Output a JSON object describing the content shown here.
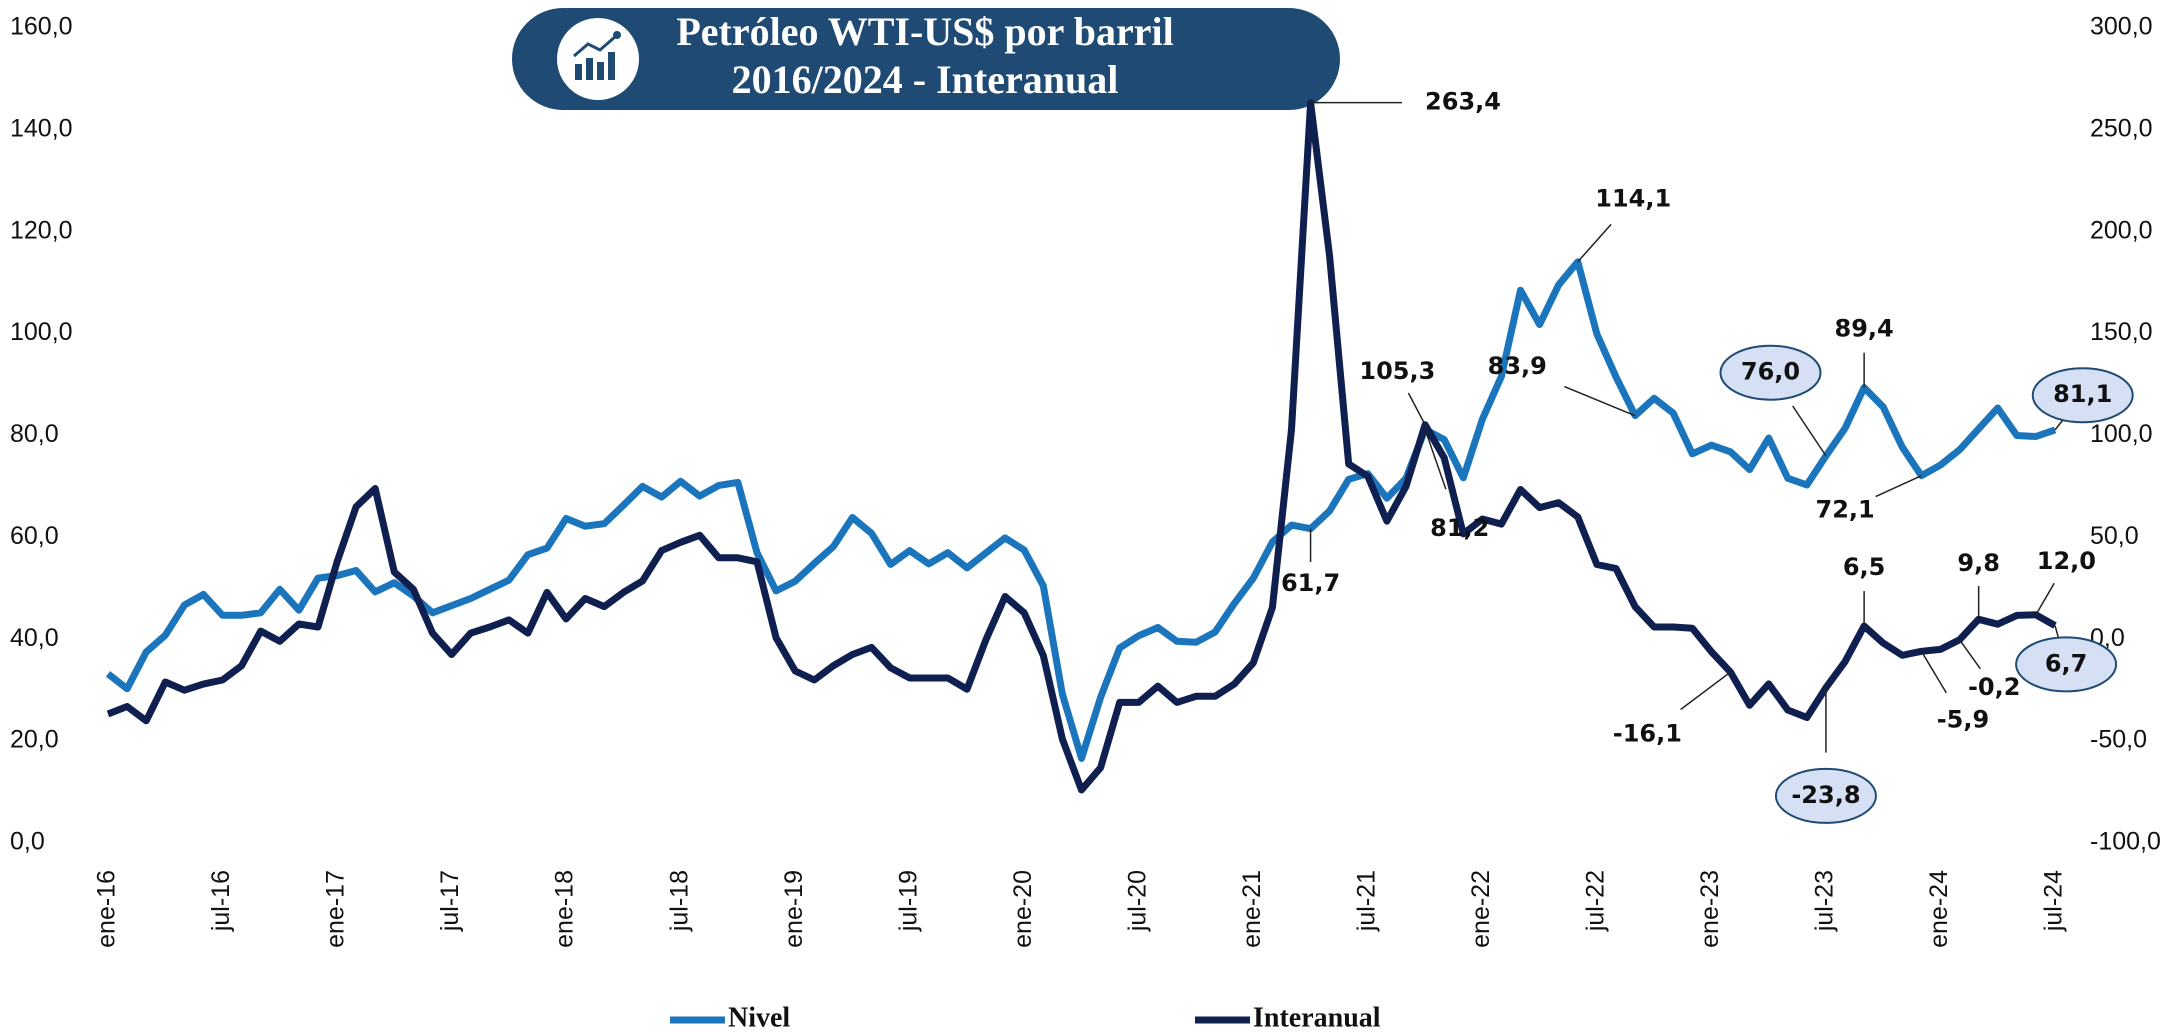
{
  "chart_data": {
    "type": "line",
    "title": "Petróleo WTI-US$ por barril",
    "subtitle": "2016/2024 - Interanual",
    "legend": "bottom",
    "categories": [
      "ene-16",
      null,
      null,
      null,
      null,
      null,
      "jul-16",
      null,
      null,
      null,
      null,
      null,
      "ene-17",
      null,
      null,
      null,
      null,
      null,
      "jul-17",
      null,
      null,
      null,
      null,
      null,
      "ene-18",
      null,
      null,
      null,
      null,
      null,
      "jul-18",
      null,
      null,
      null,
      null,
      null,
      "ene-19",
      null,
      null,
      null,
      null,
      null,
      "jul-19",
      null,
      null,
      null,
      null,
      null,
      "ene-20",
      null,
      null,
      null,
      null,
      null,
      "jul-20",
      null,
      null,
      null,
      null,
      null,
      "ene-21",
      null,
      null,
      null,
      null,
      null,
      "jul-21",
      null,
      null,
      null,
      null,
      null,
      "ene-22",
      null,
      null,
      null,
      null,
      null,
      "jul-22",
      null,
      null,
      null,
      null,
      null,
      "ene-23",
      null,
      null,
      null,
      null,
      null,
      "jul-23",
      null,
      null,
      null,
      null,
      null,
      "ene-24",
      null,
      null,
      null,
      null,
      null,
      "jul-24"
    ],
    "ylim": [
      0,
      160
    ],
    "yticks": [
      {
        "value": 0,
        "label": "0,0"
      },
      {
        "value": 20,
        "label": "20,0"
      },
      {
        "value": 40,
        "label": "40,0"
      },
      {
        "value": 60,
        "label": "60,0"
      },
      {
        "value": 80,
        "label": "80,0"
      },
      {
        "value": 100,
        "label": "100,0"
      },
      {
        "value": 120,
        "label": "120,0"
      },
      {
        "value": 140,
        "label": "140,0"
      },
      {
        "value": 160,
        "label": "160,0"
      }
    ],
    "y2lim": [
      -100,
      300
    ],
    "y2ticks": [
      {
        "value": -100,
        "label": "-100,0"
      },
      {
        "value": -50,
        "label": "-50,0"
      },
      {
        "value": 0,
        "label": "0,0"
      },
      {
        "value": 50,
        "label": "50,0"
      },
      {
        "value": 100,
        "label": "100,0"
      },
      {
        "value": 150,
        "label": "150,0"
      },
      {
        "value": 200,
        "label": "200,0"
      },
      {
        "value": 250,
        "label": "250,0"
      },
      {
        "value": 300,
        "label": "300,0"
      }
    ],
    "series": [
      {
        "name": "Nivel",
        "color": "#1b75bc",
        "values": [
          33.2,
          30.3,
          37.5,
          40.8,
          46.7,
          48.8,
          44.7,
          44.7,
          45.2,
          49.8,
          45.7,
          52.0,
          52.5,
          53.5,
          49.3,
          51.1,
          48.5,
          45.2,
          46.6,
          48.0,
          49.8,
          51.6,
          56.6,
          57.9,
          63.7,
          62.2,
          62.7,
          66.3,
          70.0,
          67.9,
          71.0,
          68.1,
          70.2,
          70.8,
          57.0,
          49.5,
          51.4,
          54.9,
          58.2,
          63.9,
          60.8,
          54.7,
          57.4,
          54.8,
          57.0,
          54.0,
          57.0,
          59.9,
          57.5,
          50.5,
          29.2,
          16.6,
          28.6,
          38.3,
          40.7,
          42.3,
          39.6,
          39.4,
          41.4,
          47.0,
          52.0,
          59.1,
          62.4,
          61.7,
          65.2,
          71.4,
          72.5,
          67.7,
          71.6,
          81.2,
          79.2,
          71.7,
          83.2,
          91.6,
          108.5,
          101.8,
          109.6,
          114.1,
          99.9,
          91.5,
          83.9,
          87.3,
          84.4,
          76.4,
          78.1,
          76.8,
          73.3,
          79.5,
          71.6,
          70.3,
          76.0,
          81.4,
          89.4,
          85.6,
          77.7,
          72.1,
          74.2,
          77.2,
          81.3,
          85.4,
          80.0,
          79.8,
          81.1
        ],
        "value_labels": [
          null,
          null,
          null,
          null,
          null,
          null,
          null,
          null,
          null,
          null,
          null,
          null,
          null,
          null,
          null,
          null,
          null,
          null,
          null,
          null,
          null,
          null,
          null,
          null,
          null,
          null,
          null,
          null,
          null,
          null,
          null,
          null,
          null,
          null,
          null,
          null,
          null,
          null,
          null,
          null,
          null,
          null,
          null,
          null,
          null,
          null,
          null,
          null,
          null,
          null,
          null,
          null,
          null,
          null,
          null,
          null,
          null,
          null,
          null,
          null,
          null,
          null,
          null,
          "61,7",
          null,
          null,
          null,
          null,
          null,
          "81,2",
          null,
          null,
          null,
          null,
          null,
          null,
          null,
          "114,1",
          null,
          null,
          "83,9",
          null,
          null,
          null,
          null,
          null,
          null,
          null,
          null,
          null,
          "76,0",
          null,
          "89,4",
          null,
          null,
          "72,1",
          null,
          null,
          null,
          null,
          null,
          null,
          "81,1"
        ]
      },
      {
        "name": "Interanual",
        "color": "#0e1f50",
        "axis": "y2",
        "values": [
          -36.7,
          -33,
          -40,
          -21,
          -25,
          -22,
          -20,
          -13,
          4,
          -1,
          7.5,
          6,
          38,
          65,
          74,
          33,
          24.5,
          3,
          -7.5,
          3,
          6,
          9.5,
          3,
          23,
          10,
          20,
          16,
          23,
          28.6,
          43.5,
          47.6,
          51,
          40,
          40,
          38,
          0.7,
          -15.6,
          -20,
          -13,
          -7.5,
          -4,
          -14,
          -19,
          -19,
          -19,
          -24.5,
          0,
          21,
          13,
          -8,
          -49,
          -74,
          -63,
          -31,
          -31,
          -23,
          -31,
          -28,
          -28,
          -22,
          -11.6,
          15.6,
          103,
          263.4,
          188,
          86,
          80,
          58,
          75,
          105.3,
          89,
          51.7,
          59,
          56.5,
          73.5,
          64.6,
          67,
          60,
          36.7,
          34.7,
          16,
          6,
          6,
          5.4,
          -6.1,
          -16.1,
          -32.4,
          -21.9,
          -34.7,
          -38.4,
          -23.8,
          -11,
          6.5,
          -1.9,
          -7.9,
          -5.9,
          -5,
          -0.2,
          9.8,
          7.4,
          11.7,
          12.0,
          6.7
        ],
        "value_labels": [
          null,
          null,
          null,
          null,
          null,
          null,
          null,
          null,
          null,
          null,
          null,
          null,
          null,
          null,
          null,
          null,
          null,
          null,
          null,
          null,
          null,
          null,
          null,
          null,
          null,
          null,
          null,
          null,
          null,
          null,
          null,
          null,
          null,
          null,
          null,
          null,
          null,
          null,
          null,
          null,
          null,
          null,
          null,
          null,
          null,
          null,
          null,
          null,
          null,
          null,
          null,
          null,
          null,
          null,
          null,
          null,
          null,
          null,
          null,
          null,
          null,
          null,
          null,
          "263,4",
          null,
          null,
          null,
          null,
          null,
          "105,3",
          null,
          null,
          null,
          null,
          null,
          null,
          null,
          null,
          null,
          null,
          null,
          null,
          null,
          null,
          null,
          "-16,1",
          null,
          null,
          null,
          null,
          "-23,8",
          null,
          "6,5",
          null,
          null,
          "-5,9",
          null,
          "-0,2",
          "9,8",
          null,
          null,
          "12,0",
          "6,7"
        ]
      }
    ]
  }
}
